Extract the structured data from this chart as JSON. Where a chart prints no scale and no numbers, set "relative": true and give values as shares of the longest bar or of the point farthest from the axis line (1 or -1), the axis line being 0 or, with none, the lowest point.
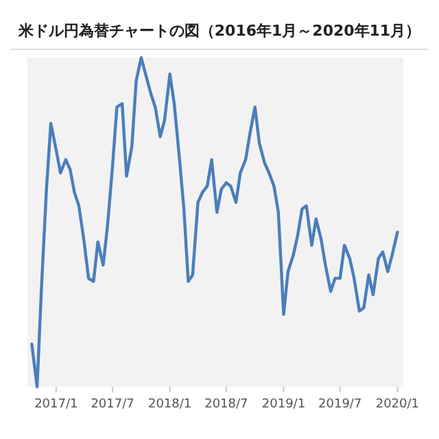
{
  "chart_data": {
    "type": "line",
    "title": "米ドル円為替チャートの図（2016年1月～2020年11月）",
    "relative": true,
    "x": [
      "2016-10-15",
      "2016-11-01",
      "2016-11-15",
      "2016-12-01",
      "2016-12-15",
      "2017-01-01",
      "2017-01-15",
      "2017-02-01",
      "2017-02-15",
      "2017-03-01",
      "2017-03-15",
      "2017-04-01",
      "2017-04-15",
      "2017-05-01",
      "2017-05-15",
      "2017-06-01",
      "2017-06-15",
      "2017-07-01",
      "2017-07-15",
      "2017-08-01",
      "2017-08-15",
      "2017-09-01",
      "2017-09-15",
      "2017-10-01",
      "2017-10-15",
      "2017-11-01",
      "2017-11-15",
      "2017-12-01",
      "2017-12-15",
      "2018-01-01",
      "2018-01-15",
      "2018-02-01",
      "2018-02-15",
      "2018-03-01",
      "2018-03-15",
      "2018-04-01",
      "2018-04-15",
      "2018-05-01",
      "2018-05-15",
      "2018-06-01",
      "2018-06-15",
      "2018-07-01",
      "2018-07-15",
      "2018-08-01",
      "2018-08-15",
      "2018-09-01",
      "2018-09-15",
      "2018-10-01",
      "2018-10-15",
      "2018-11-01",
      "2018-11-15",
      "2018-12-01",
      "2018-12-15",
      "2019-01-01",
      "2019-01-15",
      "2019-02-01",
      "2019-02-15",
      "2019-03-01",
      "2019-03-15",
      "2019-04-01",
      "2019-04-15",
      "2019-05-01",
      "2019-05-15",
      "2019-06-01",
      "2019-06-15",
      "2019-07-01",
      "2019-07-15",
      "2019-08-01",
      "2019-08-15",
      "2019-09-01",
      "2019-09-15",
      "2019-10-01",
      "2019-10-15",
      "2019-11-01",
      "2019-11-15",
      "2019-12-01",
      "2019-12-15",
      "2020-01-01"
    ],
    "series": [
      {
        "color": "#4a7ebb",
        "values": [
          0.13,
          0,
          0.3,
          0.6,
          0.8,
          0.72,
          0.65,
          0.69,
          0.66,
          0.59,
          0.55,
          0.44,
          0.33,
          0.32,
          0.44,
          0.37,
          0.49,
          0.67,
          0.85,
          0.86,
          0.64,
          0.73,
          0.93,
          1,
          0.95,
          0.89,
          0.85,
          0.76,
          0.81,
          0.95,
          0.86,
          0.69,
          0.54,
          0.32,
          0.34,
          0.56,
          0.59,
          0.61,
          0.69,
          0.53,
          0.6,
          0.62,
          0.61,
          0.56,
          0.65,
          0.69,
          0.77,
          0.85,
          0.74,
          0.68,
          0.65,
          0.61,
          0.53,
          0.22,
          0.35,
          0.4,
          0.46,
          0.54,
          0.55,
          0.43,
          0.51,
          0.45,
          0.37,
          0.29,
          0.33,
          0.33,
          0.43,
          0.39,
          0.33,
          0.23,
          0.24,
          0.34,
          0.28,
          0.39,
          0.41,
          0.35,
          0.4,
          0.47
        ]
      }
    ],
    "xlim": [
      "2016-10-01",
      "2020-01-20"
    ],
    "xticks": [
      {
        "value": "2017-01-01",
        "label": "2017/1"
      },
      {
        "value": "2017-07-01",
        "label": "2017/7"
      },
      {
        "value": "2018-01-01",
        "label": "2018/1"
      },
      {
        "value": "2018-07-01",
        "label": "2018/7"
      },
      {
        "value": "2019-01-01",
        "label": "2019/1"
      },
      {
        "value": "2019-07-01",
        "label": "2019/7"
      },
      {
        "value": "2020-01-01",
        "label": "2020/1"
      }
    ]
  }
}
